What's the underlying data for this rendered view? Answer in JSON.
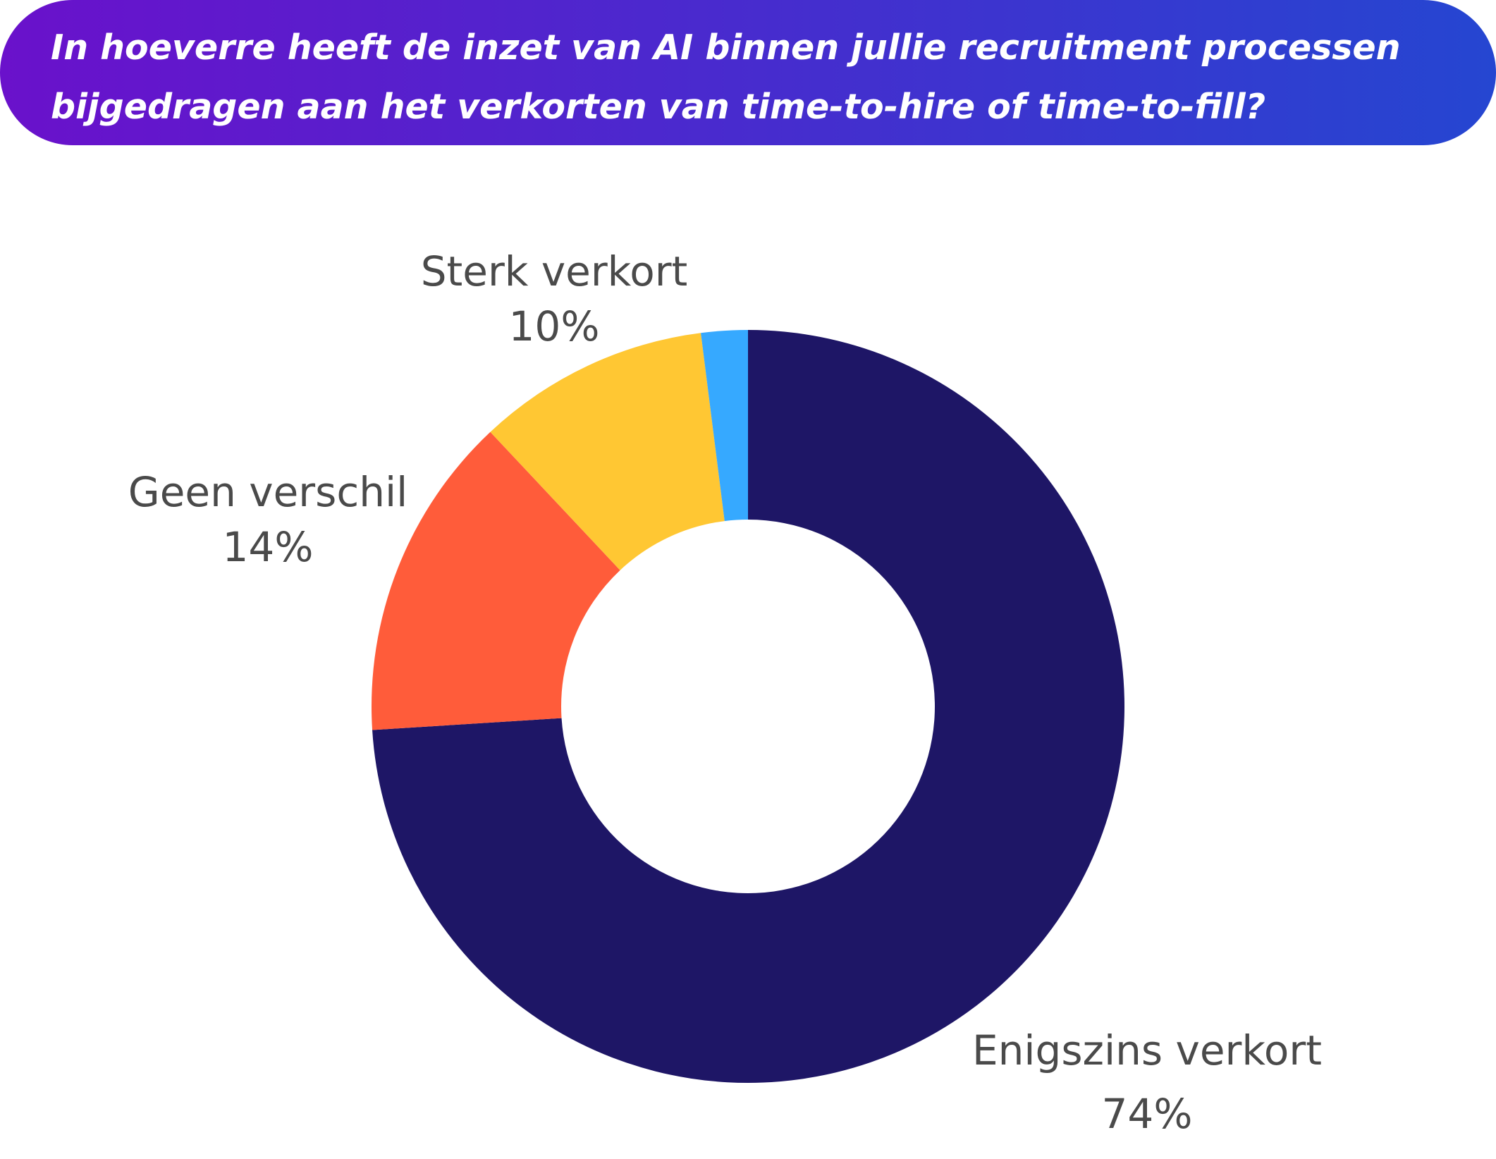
{
  "header": {
    "title": "In hoeverre heeft de inzet van AI binnen jullie recruitment processen\nbijgedragen aan het verkorten van time-to-hire of time-to-fill?",
    "gradient_start": "#6A11CB",
    "gradient_end": "#2546D1"
  },
  "chart_data": {
    "type": "pie",
    "style": "donut",
    "start_angle": "12 o'clock",
    "direction": "clockwise",
    "slices": [
      {
        "label": "Enigszins verkort",
        "value": 74,
        "display": "74%",
        "color": "#1E1666"
      },
      {
        "label": "Geen verschil",
        "value": 14,
        "display": "14%",
        "color": "#FF5C3A"
      },
      {
        "label": "Sterk verkort",
        "value": 10,
        "display": "10%",
        "color": "#FFC733"
      },
      {
        "label": "",
        "value": 2,
        "display": "",
        "color": "#36A9FF"
      }
    ]
  }
}
